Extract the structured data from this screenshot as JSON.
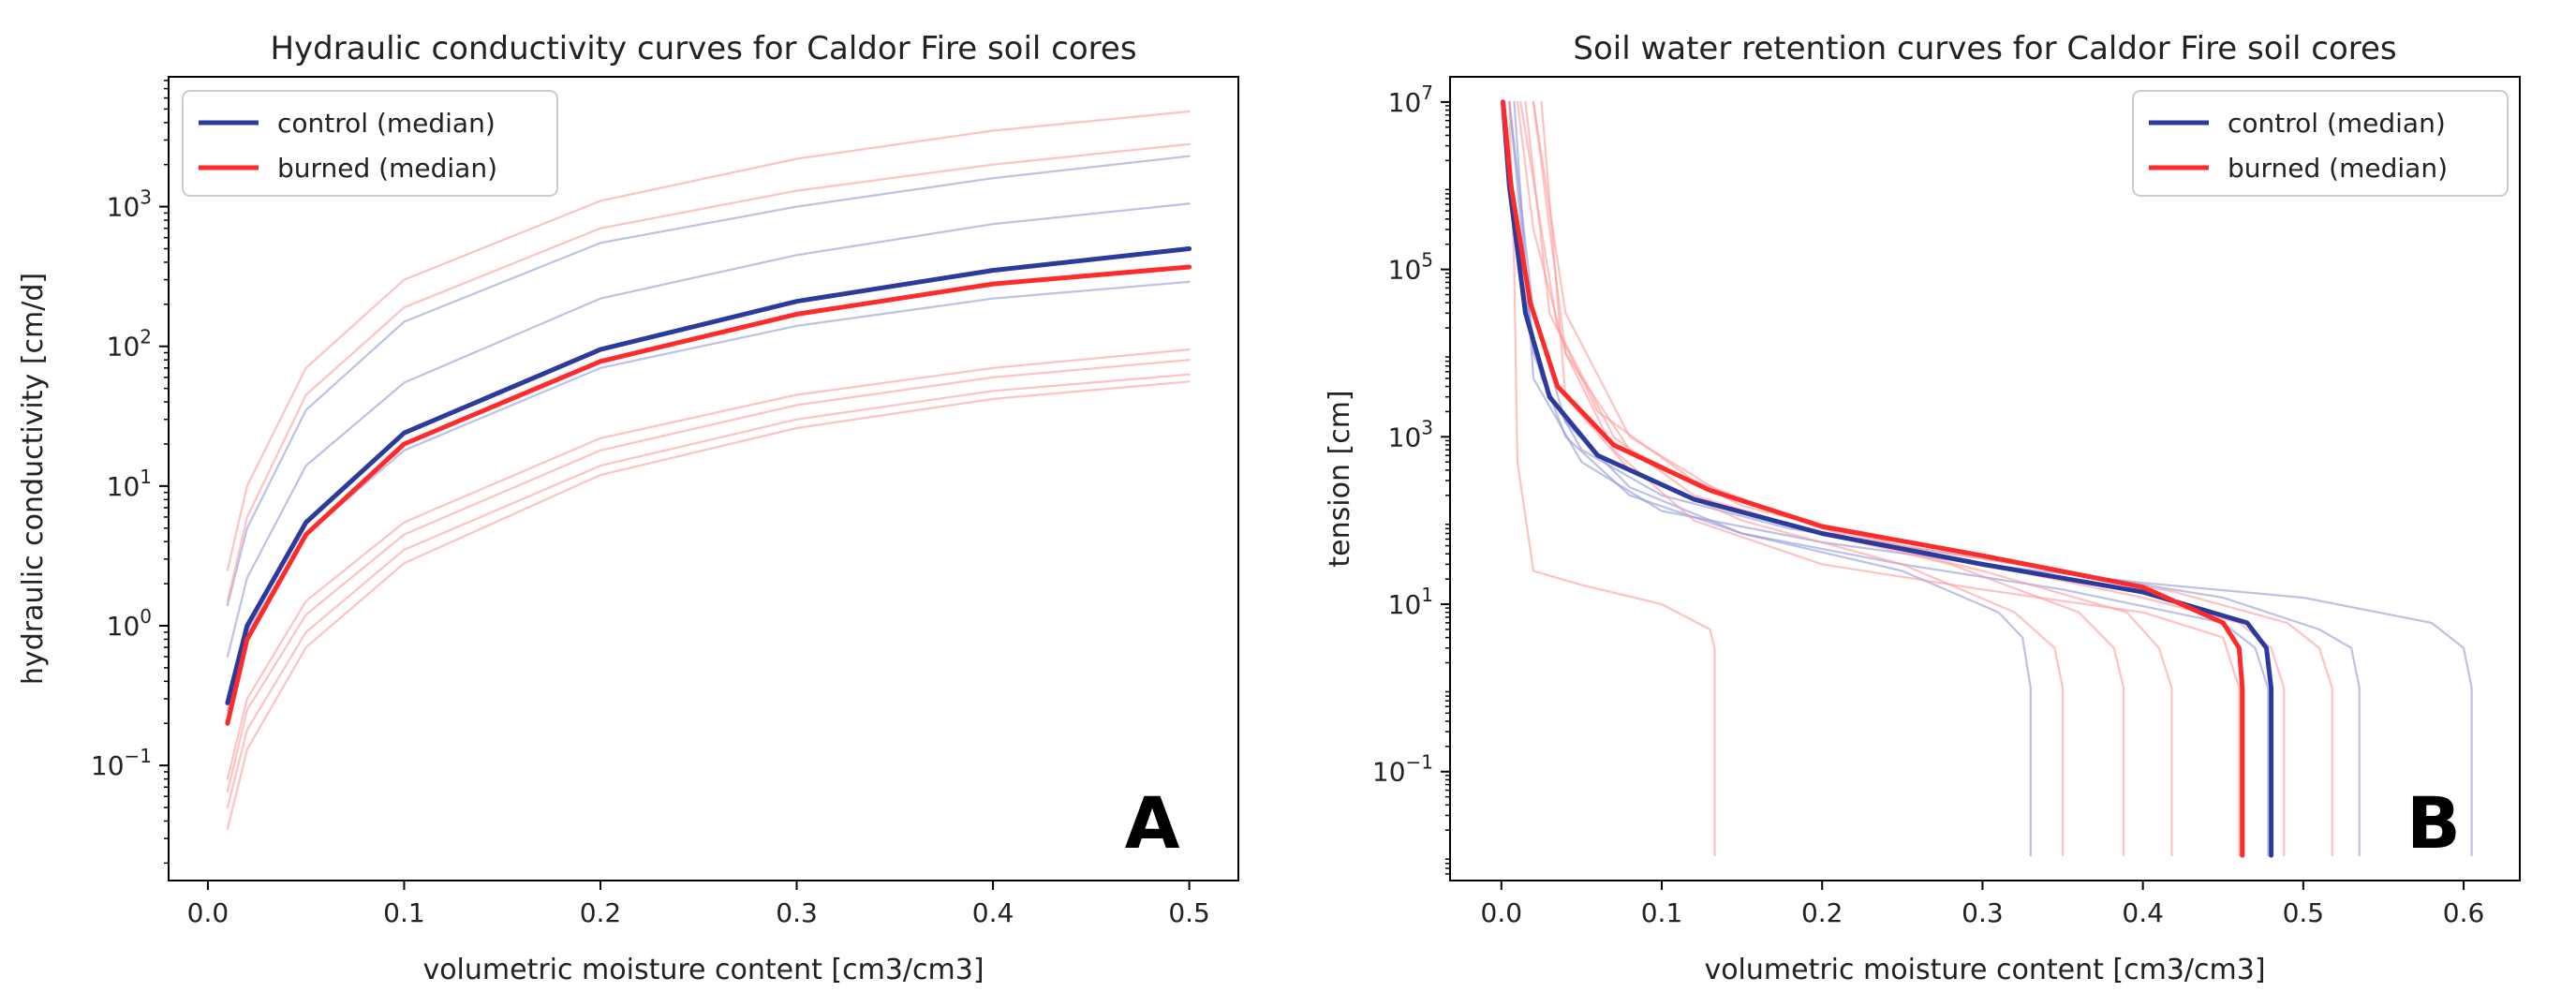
{
  "figure": {
    "colors": {
      "control": "#2b3a9c",
      "burned": "#ff2a2a",
      "control_light": "#8f97d9",
      "burned_light": "#ff9a9a"
    }
  },
  "chart_data": [
    {
      "type": "line",
      "panel": "A",
      "title": "Hydraulic conductivity curves for Caldor Fire soil cores",
      "xlabel": "volumetric moisture content [cm3/cm3]",
      "ylabel": "hydraulic conductivity [cm/d]",
      "xlim": [
        -0.02,
        0.525
      ],
      "ylim": [
        0.015,
        8500
      ],
      "yscale": "log",
      "xticks": [
        0.0,
        0.1,
        0.2,
        0.3,
        0.4,
        0.5
      ],
      "xtick_labels": [
        "0.0",
        "0.1",
        "0.2",
        "0.3",
        "0.4",
        "0.5"
      ],
      "yticks": [
        0.1,
        1,
        10,
        100,
        1000
      ],
      "ytick_labels": [
        {
          "base": "10",
          "exp": "−1"
        },
        {
          "base": "10",
          "exp": "0"
        },
        {
          "base": "10",
          "exp": "1"
        },
        {
          "base": "10",
          "exp": "2"
        },
        {
          "base": "10",
          "exp": "3"
        }
      ],
      "legend": {
        "position": "upper-left",
        "entries": [
          "control (median)",
          "burned (median)"
        ]
      },
      "series": [
        {
          "name": "control (median)",
          "group": "control",
          "median": true,
          "x": [
            0.01,
            0.02,
            0.05,
            0.1,
            0.2,
            0.3,
            0.4,
            0.5
          ],
          "values": [
            0.28,
            1.0,
            5.5,
            24,
            95,
            210,
            350,
            500
          ]
        },
        {
          "name": "burned (median)",
          "group": "burned",
          "median": true,
          "x": [
            0.01,
            0.02,
            0.05,
            0.1,
            0.2,
            0.3,
            0.4,
            0.5
          ],
          "values": [
            0.2,
            0.8,
            4.5,
            20,
            78,
            170,
            280,
            370
          ]
        },
        {
          "name": "control core 1",
          "group": "control",
          "median": false,
          "x": [
            0.01,
            0.02,
            0.05,
            0.1,
            0.2,
            0.3,
            0.4,
            0.5
          ],
          "values": [
            1.4,
            5,
            35,
            150,
            550,
            1000,
            1600,
            2300
          ]
        },
        {
          "name": "control core 2",
          "group": "control",
          "median": false,
          "x": [
            0.01,
            0.02,
            0.05,
            0.1,
            0.2,
            0.3,
            0.4,
            0.5
          ],
          "values": [
            0.6,
            2.2,
            14,
            55,
            220,
            450,
            750,
            1050
          ]
        },
        {
          "name": "control core 3",
          "group": "control",
          "median": false,
          "x": [
            0.01,
            0.02,
            0.05,
            0.1,
            0.2,
            0.3,
            0.4,
            0.5
          ],
          "values": [
            0.25,
            0.9,
            4.5,
            18,
            70,
            140,
            220,
            290
          ]
        },
        {
          "name": "burned core 1",
          "group": "burned",
          "median": false,
          "x": [
            0.01,
            0.02,
            0.05,
            0.1,
            0.2,
            0.3,
            0.4,
            0.5
          ],
          "values": [
            2.5,
            10,
            70,
            300,
            1100,
            2200,
            3500,
            4800
          ]
        },
        {
          "name": "burned core 2",
          "group": "burned",
          "median": false,
          "x": [
            0.01,
            0.02,
            0.05,
            0.1,
            0.2,
            0.3,
            0.4,
            0.5
          ],
          "values": [
            1.5,
            6,
            45,
            190,
            700,
            1300,
            2000,
            2800
          ]
        },
        {
          "name": "burned core 3",
          "group": "burned",
          "median": false,
          "x": [
            0.01,
            0.02,
            0.05,
            0.1,
            0.2,
            0.3,
            0.4,
            0.5
          ],
          "values": [
            0.08,
            0.3,
            1.5,
            5.5,
            22,
            45,
            70,
            95
          ]
        },
        {
          "name": "burned core 4",
          "group": "burned",
          "median": false,
          "x": [
            0.01,
            0.02,
            0.05,
            0.1,
            0.2,
            0.3,
            0.4,
            0.5
          ],
          "values": [
            0.065,
            0.25,
            1.2,
            4.5,
            18,
            38,
            60,
            80
          ]
        },
        {
          "name": "burned core 5",
          "group": "burned",
          "median": false,
          "x": [
            0.01,
            0.02,
            0.05,
            0.1,
            0.2,
            0.3,
            0.4,
            0.5
          ],
          "values": [
            0.05,
            0.18,
            0.9,
            3.5,
            14,
            30,
            48,
            63
          ]
        },
        {
          "name": "burned core 6",
          "group": "burned",
          "median": false,
          "x": [
            0.01,
            0.02,
            0.05,
            0.1,
            0.2,
            0.3,
            0.4,
            0.5
          ],
          "values": [
            0.035,
            0.13,
            0.7,
            2.8,
            12,
            26,
            42,
            56
          ]
        }
      ]
    },
    {
      "type": "line",
      "panel": "B",
      "title": "Soil water retention curves for Caldor Fire soil cores",
      "xlabel": "volumetric moisture content [cm3/cm3]",
      "ylabel": "tension [cm]",
      "xlim": [
        -0.032,
        0.635
      ],
      "ylim": [
        0.005,
        20000000
      ],
      "yscale": "log",
      "xticks": [
        0.0,
        0.1,
        0.2,
        0.3,
        0.4,
        0.5,
        0.6
      ],
      "xtick_labels": [
        "0.0",
        "0.1",
        "0.2",
        "0.3",
        "0.4",
        "0.5",
        "0.6"
      ],
      "yticks": [
        0.1,
        10,
        1000,
        100000,
        10000000
      ],
      "ytick_labels": [
        {
          "base": "10",
          "exp": "−1"
        },
        {
          "base": "10",
          "exp": "1"
        },
        {
          "base": "10",
          "exp": "3"
        },
        {
          "base": "10",
          "exp": "5"
        },
        {
          "base": "10",
          "exp": "7"
        }
      ],
      "legend": {
        "position": "upper-right",
        "entries": [
          "control (median)",
          "burned (median)"
        ]
      },
      "series": [
        {
          "name": "control (median)",
          "group": "control",
          "median": true,
          "x": [
            0.48,
            0.48,
            0.477,
            0.465,
            0.4,
            0.3,
            0.2,
            0.12,
            0.06,
            0.03,
            0.015,
            0.005,
            0.001
          ],
          "values": [
            0.01,
            1,
            3,
            6,
            14,
            30,
            70,
            180,
            600,
            3000,
            30000,
            1000000,
            10000000
          ]
        },
        {
          "name": "burned (median)",
          "group": "burned",
          "median": true,
          "x": [
            0.462,
            0.462,
            0.46,
            0.45,
            0.4,
            0.3,
            0.2,
            0.13,
            0.07,
            0.035,
            0.018,
            0.006,
            0.001
          ],
          "values": [
            0.01,
            1,
            3,
            6,
            16,
            38,
            85,
            230,
            800,
            4000,
            40000,
            1000000,
            10000000
          ]
        },
        {
          "name": "control core 1",
          "group": "control",
          "median": false,
          "x": [
            0.33,
            0.33,
            0.325,
            0.31,
            0.25,
            0.15,
            0.08,
            0.04,
            0.02,
            0.005
          ],
          "values": [
            0.01,
            1,
            4,
            8,
            25,
            70,
            250,
            1500,
            30000,
            10000000
          ]
        },
        {
          "name": "control core 2",
          "group": "control",
          "median": false,
          "x": [
            0.535,
            0.535,
            0.53,
            0.51,
            0.45,
            0.3,
            0.18,
            0.1,
            0.05,
            0.025,
            0.012,
            0.002
          ],
          "values": [
            0.01,
            1,
            3,
            5,
            12,
            35,
            80,
            200,
            700,
            5000,
            100000,
            10000000
          ]
        },
        {
          "name": "control core 3",
          "group": "control",
          "median": false,
          "x": [
            0.605,
            0.605,
            0.6,
            0.58,
            0.5,
            0.4,
            0.3,
            0.2,
            0.1,
            0.05,
            0.02,
            0.008
          ],
          "values": [
            0.01,
            1,
            3,
            6,
            12,
            18,
            30,
            55,
            130,
            500,
            5000,
            10000000
          ]
        },
        {
          "name": "control core 4",
          "group": "control",
          "median": false,
          "x": [
            0.478,
            0.478,
            0.47,
            0.45,
            0.35,
            0.25,
            0.15,
            0.08,
            0.04,
            0.02,
            0.005
          ],
          "values": [
            0.01,
            1,
            3,
            6,
            15,
            30,
            70,
            200,
            1000,
            10000,
            10000000
          ]
        },
        {
          "name": "burned core 1",
          "group": "burned",
          "median": false,
          "x": [
            0.133,
            0.133,
            0.13,
            0.1,
            0.05,
            0.02,
            0.01,
            0.008,
            0.005
          ],
          "values": [
            0.01,
            3,
            5,
            10,
            17,
            25,
            500,
            100000,
            10000000
          ]
        },
        {
          "name": "burned core 2",
          "group": "burned",
          "median": false,
          "x": [
            0.35,
            0.35,
            0.345,
            0.32,
            0.25,
            0.15,
            0.08,
            0.04,
            0.025
          ],
          "values": [
            0.01,
            1,
            3,
            8,
            30,
            100,
            400,
            3000,
            10000000
          ]
        },
        {
          "name": "burned core 3",
          "group": "burned",
          "median": false,
          "x": [
            0.388,
            0.388,
            0.382,
            0.36,
            0.28,
            0.2,
            0.12,
            0.07,
            0.035,
            0.012
          ],
          "values": [
            0.01,
            1,
            3,
            8,
            30,
            70,
            200,
            1000,
            20000,
            10000000
          ]
        },
        {
          "name": "burned core 4",
          "group": "burned",
          "median": false,
          "x": [
            0.418,
            0.418,
            0.41,
            0.39,
            0.3,
            0.22,
            0.14,
            0.08,
            0.04,
            0.02
          ],
          "values": [
            0.01,
            1,
            3,
            8,
            25,
            60,
            200,
            1000,
            30000,
            10000000
          ]
        },
        {
          "name": "burned core 5",
          "group": "burned",
          "median": false,
          "x": [
            0.488,
            0.488,
            0.48,
            0.46,
            0.4,
            0.3,
            0.2,
            0.12,
            0.06,
            0.03,
            0.015
          ],
          "values": [
            0.01,
            1,
            3,
            6,
            12,
            30,
            80,
            300,
            2000,
            30000,
            10000000
          ]
        },
        {
          "name": "burned core 6",
          "group": "burned",
          "median": false,
          "x": [
            0.518,
            0.518,
            0.51,
            0.49,
            0.42,
            0.35,
            0.25,
            0.15,
            0.08,
            0.04,
            0.02
          ],
          "values": [
            0.01,
            1,
            3,
            6,
            14,
            25,
            50,
            150,
            700,
            10000,
            10000000
          ]
        },
        {
          "name": "burned core 7",
          "group": "burned",
          "median": false,
          "x": [
            0.46,
            0.46,
            0.45,
            0.4,
            0.3,
            0.2,
            0.12,
            0.07,
            0.04,
            0.02,
            0.01
          ],
          "values": [
            0.01,
            1,
            4,
            8,
            15,
            30,
            100,
            700,
            10000,
            300000,
            10000000
          ]
        }
      ]
    }
  ]
}
